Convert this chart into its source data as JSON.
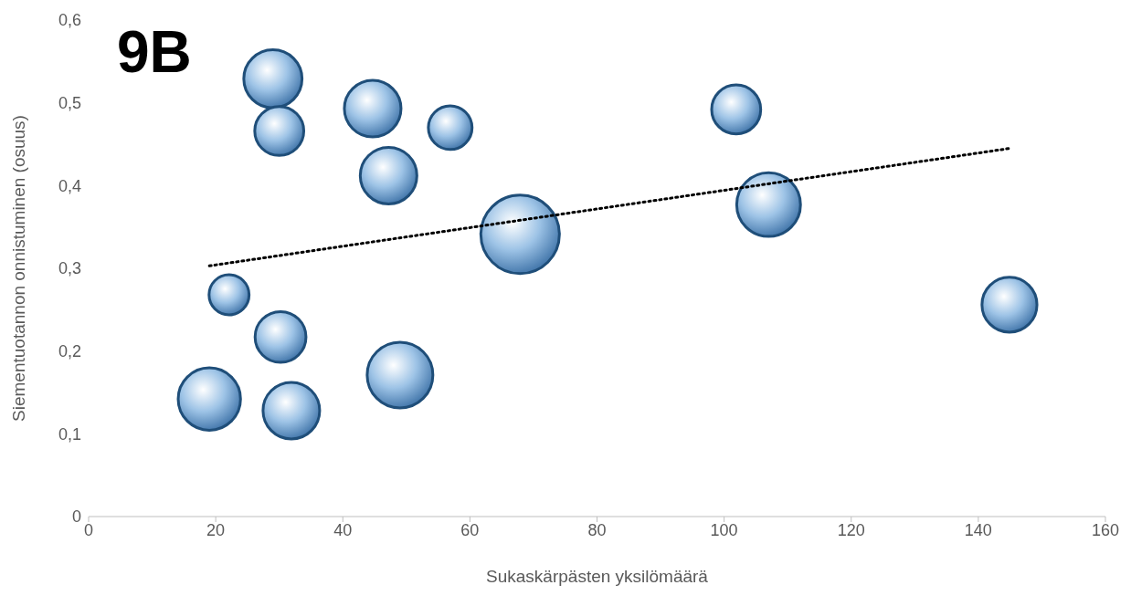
{
  "chart_data": {
    "type": "bubble",
    "title": "9B",
    "xlabel": "Sukaskärpästen yksilömäärä",
    "ylabel": "Siementuotannon onnistuminen (osuus)",
    "xlim": [
      0,
      160
    ],
    "xticks": [
      0,
      20,
      40,
      60,
      80,
      100,
      120,
      140,
      160
    ],
    "ylim": [
      0,
      0.6
    ],
    "yticks": [
      0,
      {
        "value": 0.1,
        "label": "0,1"
      },
      {
        "value": 0.2,
        "label": "0,2"
      },
      {
        "value": 0.3,
        "label": "0,3"
      },
      {
        "value": 0.4,
        "label": "0,4"
      },
      {
        "value": 0.5,
        "label": "0,5"
      },
      {
        "value": 0.6,
        "label": "0,6"
      }
    ],
    "grid": false,
    "legend": false,
    "series": [
      {
        "color": "#1f4e79",
        "x": [
          29,
          30,
          44.7,
          56.9,
          47.2,
          67.9,
          101.9,
          107,
          144.9,
          22.1,
          30.2,
          19,
          31.9,
          49
        ],
        "values": [
          0.529,
          0.466,
          0.493,
          0.47,
          0.412,
          0.341,
          0.492,
          0.377,
          0.256,
          0.268,
          0.217,
          0.142,
          0.128,
          0.171
        ],
        "sizes": [
          0.55,
          0.39,
          0.52,
          0.31,
          0.52,
          1,
          0.39,
          0.66,
          0.49,
          0.26,
          0.42,
          0.63,
          0.52,
          0.7
        ]
      },
      {
        "type": "line",
        "color": "#000000",
        "line_style": "dotted",
        "marker": "none",
        "x": [
          19,
          145
        ],
        "values": [
          0.303,
          0.445
        ]
      }
    ]
  }
}
